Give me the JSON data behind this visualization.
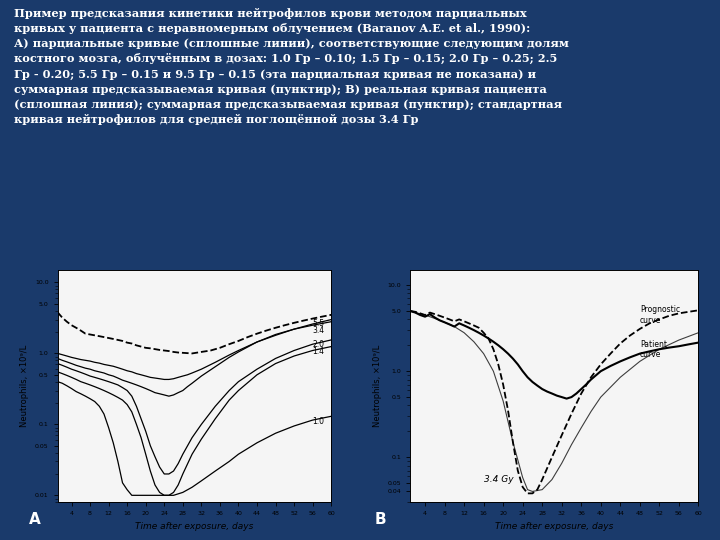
{
  "bg_color": "#1a3a6b",
  "panel_bg": "#f5f5f5",
  "text_color": "#ffffff",
  "title_text": "Пример предсказания кинетики нейтрофилов крови методом парциальных\nкривых у пациента с неравномерным облучением (Baranov A.E. et al., 1990):\nА) парциальные кривые (сплошные линии), соответствующие следующим долям\nкостного мозга, облучённым в дозах: 1.0 Гр – 0.10; 1.5 Гр – 0.15; 2.0 Гр – 0.25; 2.5\nГр - 0.20; 5.5 Гр – 0.15 и 9.5 Гр – 0.15 (эта парциальная кривая не показана) и\nсуммарная предсказываемая кривая (пунктир); В) реальная кривая пациента\n(сплошная линия); суммарная предсказываемая кривая (пунктир); стандартная\nкривая нейтрофилов для средней поглощённой дозы 3.4 Гр",
  "ylabel_A": "Neutrophils, ×10⁹/L",
  "ylabel_B": "Neutrophils, ×10⁹/L",
  "xlabel": "Time after exposure, days",
  "label_A": "A",
  "label_B": "B",
  "xticks_A": [
    4,
    8,
    12,
    16,
    20,
    24,
    28,
    32,
    36,
    40,
    44,
    48,
    52,
    56,
    60
  ],
  "xticks_B": [
    4,
    8,
    12,
    16,
    20,
    24,
    28,
    32,
    36,
    40,
    44,
    48,
    52,
    56,
    60
  ],
  "annotation_34gy": "3.4 Gy",
  "annotation_prognostic": "Prognostic\ncurve",
  "annotation_patient": "Patient\ncurve"
}
